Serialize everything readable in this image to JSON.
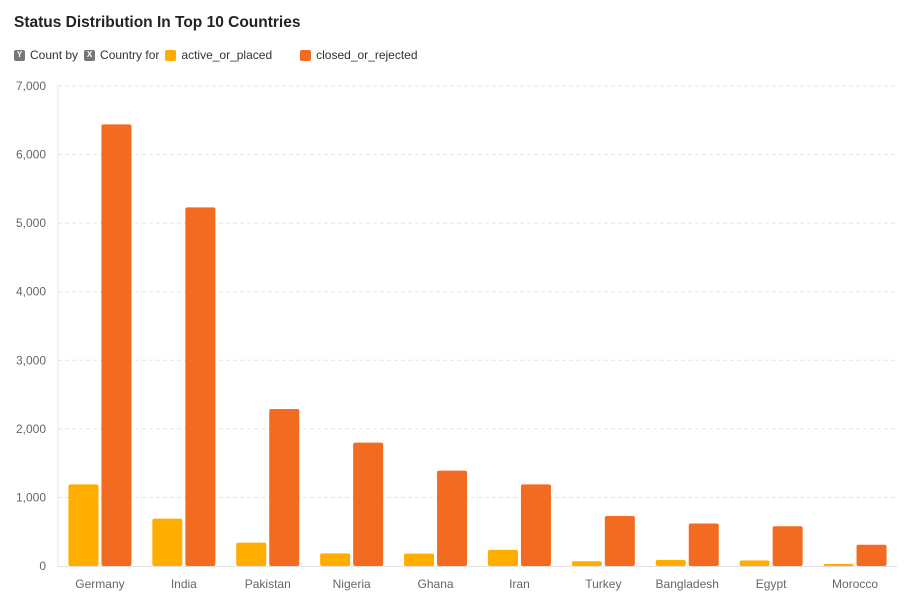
{
  "chart_data": {
    "type": "bar",
    "title": "Status Distribution In Top 10 Countries",
    "legend_prefix": {
      "y_badge": "Y",
      "y_text": "Count by",
      "x_badge": "X",
      "x_text": "Country for"
    },
    "categories": [
      "Germany",
      "India",
      "Pakistan",
      "Nigeria",
      "Ghana",
      "Iran",
      "Turkey",
      "Bangladesh",
      "Egypt",
      "Morocco"
    ],
    "series": [
      {
        "name": "active_or_placed",
        "color": "#FFAE00",
        "values": [
          1190,
          690,
          340,
          185,
          180,
          235,
          70,
          90,
          80,
          30
        ]
      },
      {
        "name": "closed_or_rejected",
        "color": "#F26B21",
        "values": [
          6440,
          5230,
          2290,
          1800,
          1390,
          1190,
          730,
          620,
          580,
          310
        ]
      }
    ],
    "ylim": [
      0,
      7000
    ],
    "yticks": [
      0,
      1000,
      2000,
      3000,
      4000,
      5000,
      6000,
      7000
    ],
    "ytick_labels": [
      "0",
      "1,000",
      "2,000",
      "3,000",
      "4,000",
      "5,000",
      "6,000",
      "7,000"
    ],
    "grid": true,
    "legend_position": "top-left",
    "xlabel": "",
    "ylabel": ""
  }
}
